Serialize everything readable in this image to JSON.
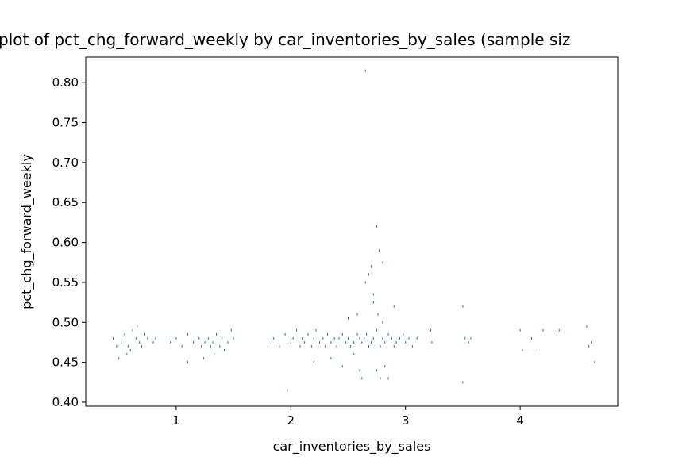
{
  "chart_data": {
    "type": "scatter",
    "title": "plot of pct_chg_forward_weekly by car_inventories_by_sales (sample siz",
    "x_label": "car_inventories_by_sales",
    "y_label": "pct_chg_forward_weekly",
    "color": "#1f77b4",
    "xlim": [
      0.211,
      4.851
    ],
    "xticks": [
      1,
      2,
      3,
      4
    ],
    "ylim": [
      0.395,
      0.832
    ],
    "yticks": [
      {
        "value": 0.4,
        "label": "0.40"
      },
      {
        "value": 0.45,
        "label": "0.45"
      },
      {
        "value": 0.5,
        "label": "0.50"
      },
      {
        "value": 0.55,
        "label": "0.55"
      },
      {
        "value": 0.6,
        "label": "0.60"
      },
      {
        "value": 0.65,
        "label": "0.65"
      },
      {
        "value": 0.7,
        "label": "0.70"
      },
      {
        "value": 0.75,
        "label": "0.75"
      },
      {
        "value": 0.8,
        "label": "0.80"
      }
    ],
    "x": [
      0.45,
      0.48,
      0.52,
      0.55,
      0.58,
      0.6,
      0.62,
      0.65,
      0.68,
      0.7,
      0.72,
      0.75,
      0.8,
      0.82,
      0.5,
      0.57,
      0.66,
      0.95,
      1.0,
      1.05,
      1.1,
      1.15,
      1.2,
      1.22,
      1.25,
      1.28,
      1.3,
      1.32,
      1.35,
      1.38,
      1.4,
      1.42,
      1.45,
      1.48,
      1.5,
      1.1,
      1.24,
      1.33,
      1.8,
      1.85,
      1.9,
      1.95,
      2.0,
      2.02,
      2.05,
      2.08,
      2.1,
      2.12,
      2.15,
      2.18,
      2.2,
      2.22,
      2.25,
      2.28,
      2.3,
      2.32,
      2.35,
      2.38,
      2.4,
      2.42,
      2.45,
      2.48,
      2.5,
      2.52,
      2.55,
      2.58,
      2.6,
      2.62,
      2.64,
      2.66,
      2.68,
      2.7,
      2.72,
      2.75,
      2.78,
      2.8,
      2.82,
      2.85,
      2.88,
      2.9,
      2.92,
      2.95,
      2.98,
      3.0,
      3.03,
      3.06,
      3.1,
      1.97,
      2.2,
      2.35,
      2.5,
      2.55,
      2.6,
      2.62,
      2.65,
      2.65,
      2.68,
      2.7,
      2.72,
      2.75,
      2.75,
      2.77,
      2.78,
      2.8,
      2.82,
      2.85,
      2.9,
      2.72,
      2.76,
      2.8,
      2.58,
      2.45,
      3.22,
      3.23,
      3.5,
      3.52,
      3.55,
      3.57,
      3.5,
      4.0,
      4.02,
      4.1,
      4.12,
      4.2,
      4.32,
      4.34,
      4.58,
      4.6,
      4.65,
      4.62
    ],
    "y": [
      0.48,
      0.47,
      0.475,
      0.485,
      0.47,
      0.465,
      0.49,
      0.48,
      0.475,
      0.47,
      0.485,
      0.48,
      0.475,
      0.48,
      0.455,
      0.46,
      0.495,
      0.475,
      0.48,
      0.47,
      0.485,
      0.475,
      0.48,
      0.47,
      0.475,
      0.48,
      0.47,
      0.475,
      0.485,
      0.47,
      0.48,
      0.465,
      0.475,
      0.49,
      0.48,
      0.45,
      0.455,
      0.46,
      0.475,
      0.48,
      0.47,
      0.485,
      0.475,
      0.48,
      0.49,
      0.47,
      0.48,
      0.475,
      0.485,
      0.47,
      0.48,
      0.49,
      0.475,
      0.48,
      0.47,
      0.485,
      0.475,
      0.48,
      0.47,
      0.48,
      0.485,
      0.475,
      0.48,
      0.47,
      0.475,
      0.485,
      0.48,
      0.475,
      0.48,
      0.485,
      0.47,
      0.475,
      0.48,
      0.49,
      0.47,
      0.48,
      0.475,
      0.485,
      0.48,
      0.47,
      0.475,
      0.48,
      0.485,
      0.475,
      0.48,
      0.47,
      0.48,
      0.415,
      0.45,
      0.455,
      0.505,
      0.46,
      0.44,
      0.43,
      0.815,
      0.55,
      0.56,
      0.57,
      0.535,
      0.62,
      0.44,
      0.59,
      0.43,
      0.575,
      0.445,
      0.43,
      0.52,
      0.525,
      0.51,
      0.5,
      0.51,
      0.445,
      0.49,
      0.475,
      0.52,
      0.48,
      0.475,
      0.48,
      0.425,
      0.49,
      0.465,
      0.48,
      0.465,
      0.49,
      0.485,
      0.49,
      0.495,
      0.47,
      0.45,
      0.475
    ]
  }
}
